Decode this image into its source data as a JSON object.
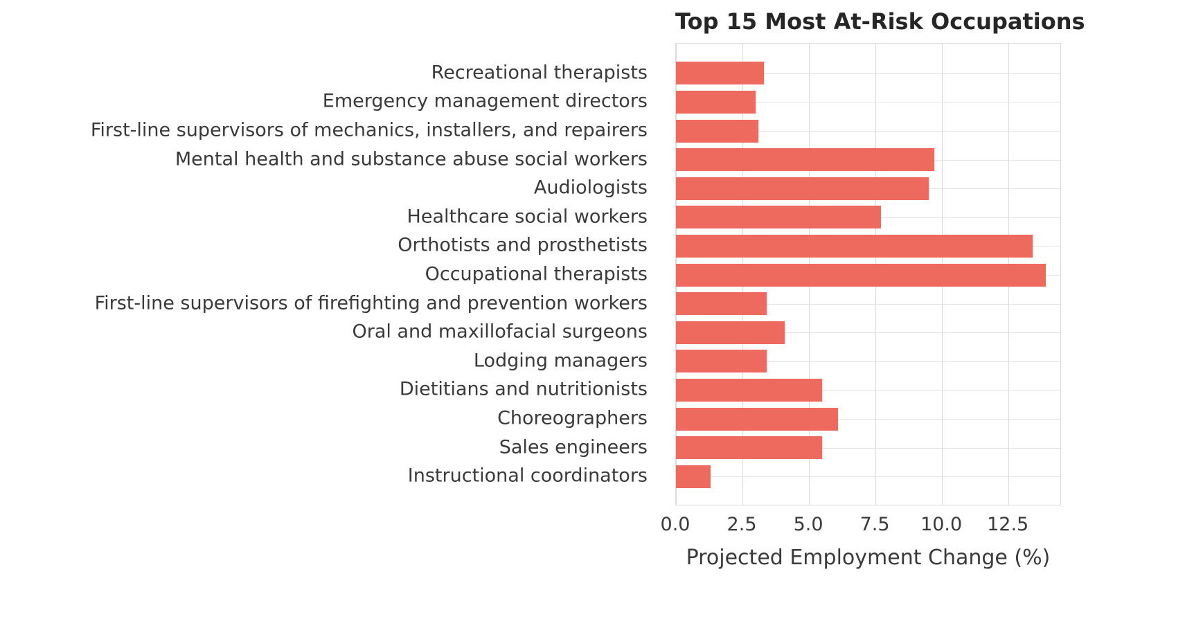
{
  "chart_data": {
    "type": "bar",
    "orientation": "horizontal",
    "title": "Top 15 Most At-Risk Occupations",
    "xlabel": "Projected Employment Change (%)",
    "ylabel": "",
    "categories": [
      "Recreational therapists",
      "Emergency management directors",
      "First-line supervisors of mechanics, installers, and repairers",
      "Mental health and substance abuse social workers",
      "Audiologists",
      "Healthcare social workers",
      "Orthotists and prosthetists",
      "Occupational therapists",
      "First-line supervisors of firefighting and prevention workers",
      "Oral and maxillofacial surgeons",
      "Lodging managers",
      "Dietitians and nutritionists",
      "Choreographers",
      "Sales engineers",
      "Instructional coordinators"
    ],
    "values": [
      3.3,
      3.0,
      3.1,
      9.7,
      9.5,
      7.7,
      13.4,
      13.9,
      3.4,
      4.1,
      3.4,
      5.5,
      6.1,
      5.5,
      1.3
    ],
    "xlim": [
      0,
      14.5
    ],
    "xticks": [
      {
        "label": "0.0",
        "value": 0.0
      },
      {
        "label": "2.5",
        "value": 2.5
      },
      {
        "label": "5.0",
        "value": 5.0
      },
      {
        "label": "7.5",
        "value": 7.5
      },
      {
        "label": "10.0",
        "value": 10.0
      },
      {
        "label": "12.5",
        "value": 12.5
      }
    ],
    "grid": true,
    "legend": "none",
    "bar_color": "#ef6a5e",
    "grid_color": "#d9d9d9",
    "text_color": "#3a3a3a",
    "title_color": "#262626",
    "background_color": "#ffffff"
  }
}
